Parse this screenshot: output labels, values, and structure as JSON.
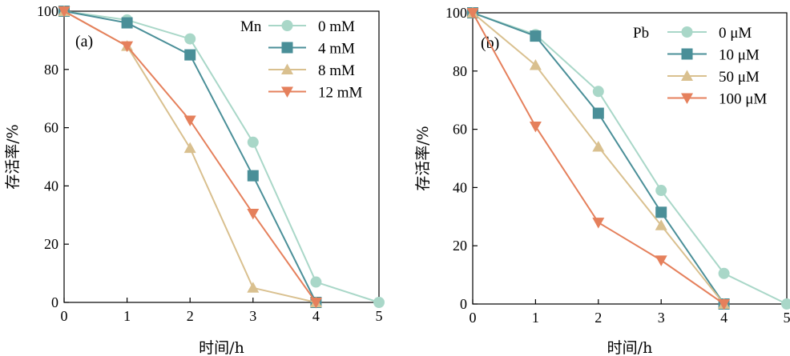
{
  "chart_data": [
    {
      "type": "line",
      "panel_label": "(a)",
      "legend_title": "Mn",
      "legend_position": "top-right",
      "xlabel": "时间/h",
      "ylabel": "存活率/%",
      "xlim": [
        0,
        5
      ],
      "ylim": [
        0,
        100
      ],
      "xticks": [
        "0",
        "1",
        "2",
        "3",
        "4",
        "5"
      ],
      "yticks": [
        "0",
        "20",
        "40",
        "60",
        "80",
        "100"
      ],
      "series": [
        {
          "name": "0 mM",
          "marker": "circle",
          "color": "#a9d7c8",
          "x": [
            0,
            1,
            2,
            3,
            4,
            5
          ],
          "y": [
            100,
            97,
            90.5,
            55,
            7,
            0
          ]
        },
        {
          "name": "4 mM",
          "marker": "square",
          "color": "#4a8f98",
          "x": [
            0,
            1,
            2,
            3,
            4
          ],
          "y": [
            100,
            96,
            85,
            43.5,
            0
          ]
        },
        {
          "name": "8 mM",
          "marker": "triangle-up",
          "color": "#d9c08f",
          "x": [
            0,
            1,
            2,
            3,
            4
          ],
          "y": [
            100,
            88,
            53,
            5,
            0
          ]
        },
        {
          "name": "12 mM",
          "marker": "triangle-down",
          "color": "#e5805c",
          "x": [
            0,
            1,
            2,
            3,
            4
          ],
          "y": [
            100,
            88,
            62.5,
            30.5,
            0
          ]
        }
      ]
    },
    {
      "type": "line",
      "panel_label": "(b)",
      "legend_title": "Pb",
      "legend_position": "top-right",
      "xlabel": "时间/h",
      "ylabel": "存活率/%",
      "xlim": [
        0,
        5
      ],
      "ylim": [
        0,
        100
      ],
      "xticks": [
        "0",
        "1",
        "2",
        "3",
        "4",
        "5"
      ],
      "yticks": [
        "0",
        "20",
        "40",
        "60",
        "80",
        "100"
      ],
      "series": [
        {
          "name": "0 μM",
          "marker": "circle",
          "color": "#a9d7c8",
          "x": [
            0,
            1,
            2,
            3,
            4,
            5
          ],
          "y": [
            100,
            92.5,
            73,
            39,
            10.5,
            0
          ]
        },
        {
          "name": "10 μM",
          "marker": "square",
          "color": "#4a8f98",
          "x": [
            0,
            1,
            2,
            3,
            4
          ],
          "y": [
            100,
            92,
            65.5,
            31.5,
            0
          ]
        },
        {
          "name": "50 μM",
          "marker": "triangle-up",
          "color": "#d9c08f",
          "x": [
            0,
            1,
            2,
            3,
            4
          ],
          "y": [
            100,
            82,
            54,
            27,
            0
          ]
        },
        {
          "name": "100 μM",
          "marker": "triangle-down",
          "color": "#e5805c",
          "x": [
            0,
            1,
            2,
            3,
            4
          ],
          "y": [
            100,
            61,
            28,
            15,
            0
          ]
        }
      ]
    }
  ]
}
